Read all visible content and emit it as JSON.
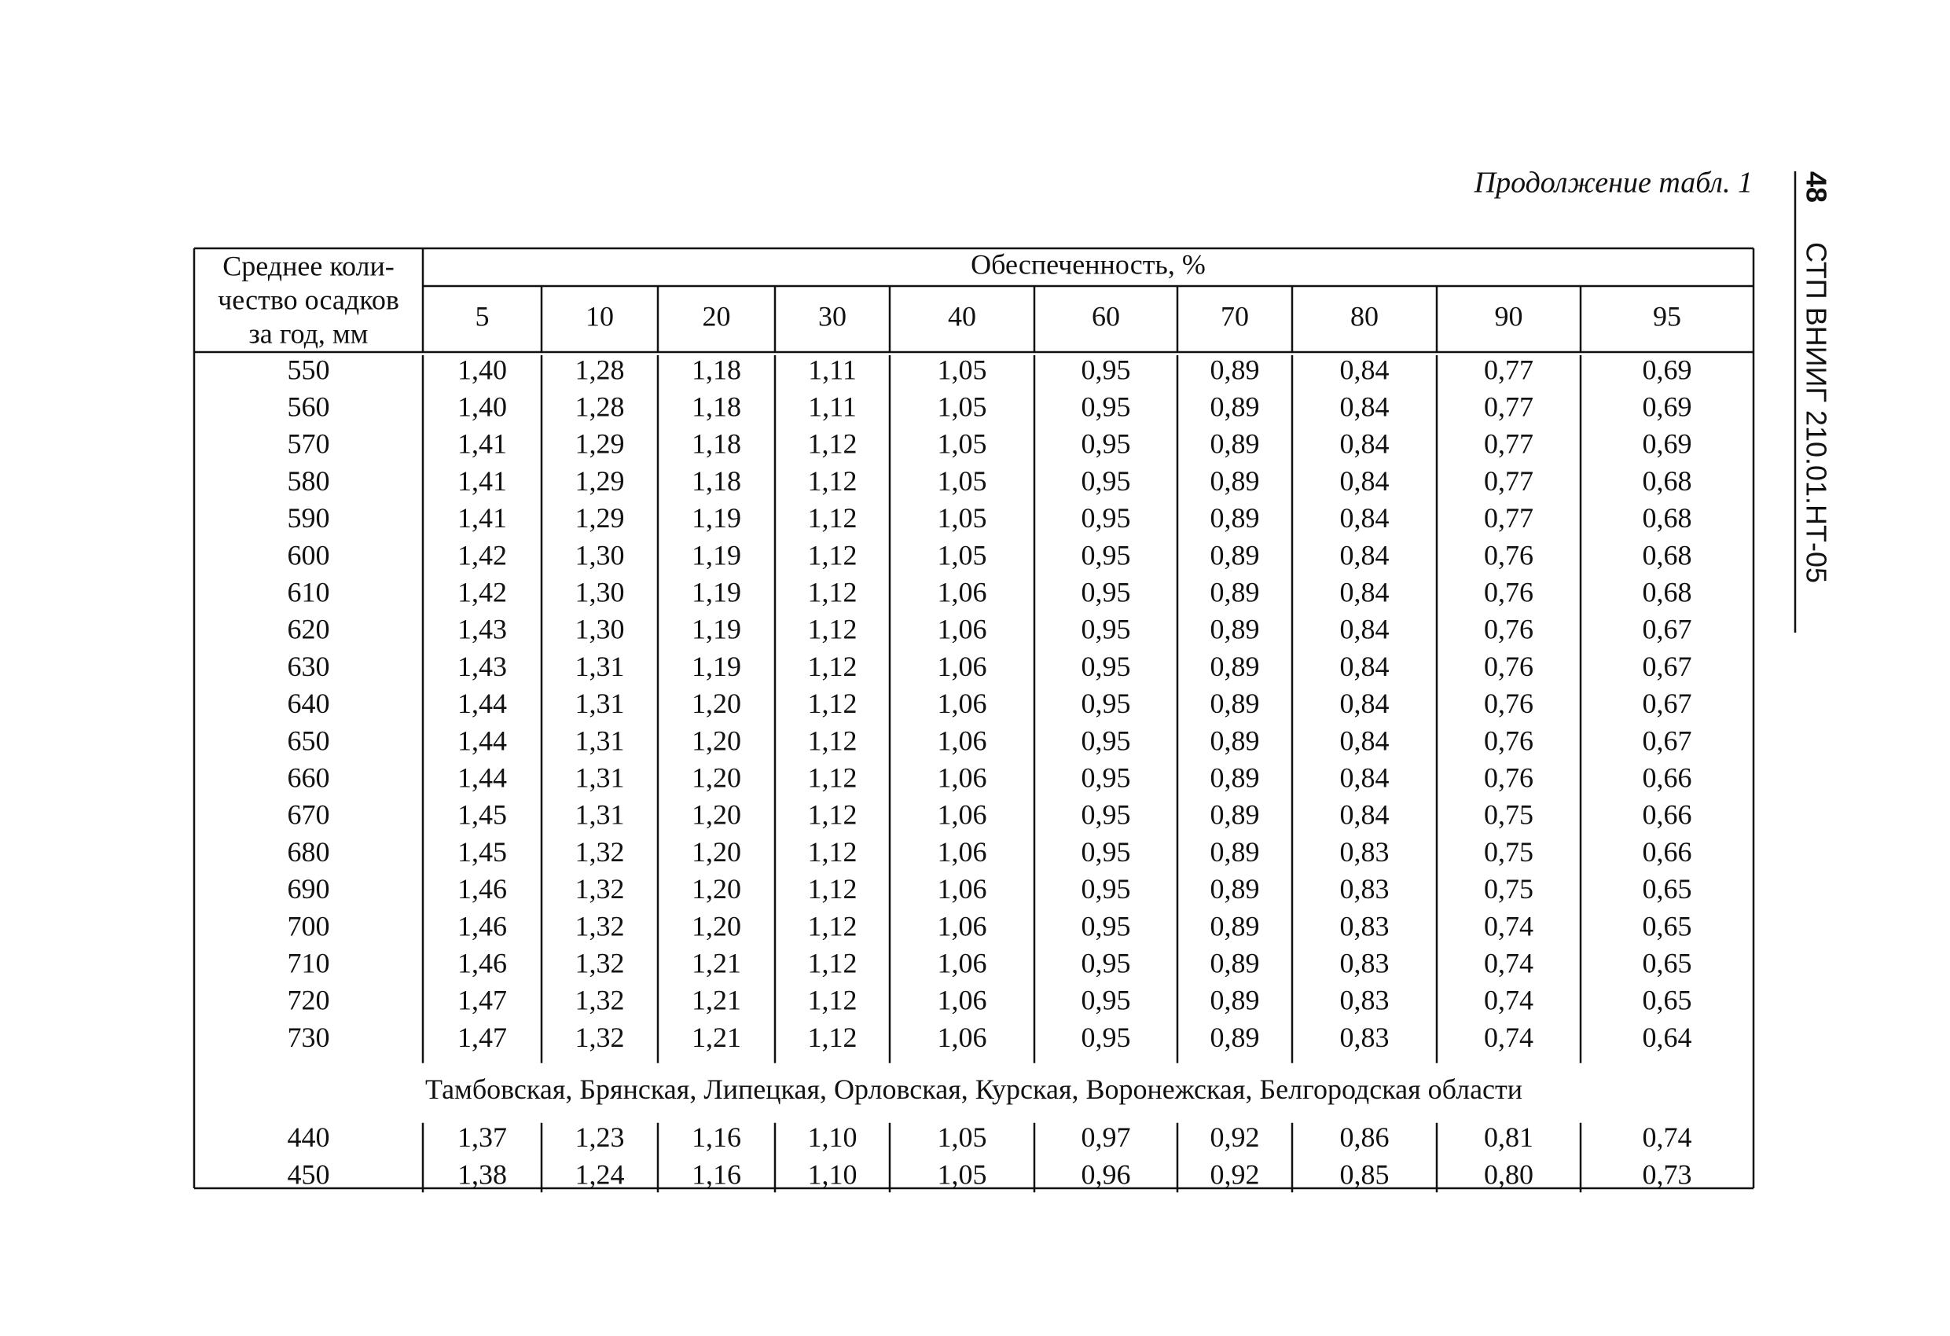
{
  "header": {
    "caption": "Продолжение  табл. 1",
    "page_number": "48",
    "doc_code": "СТП ВНИИГ 210.01.НТ-05"
  },
  "table": {
    "stub_header": [
      "Среднее коли-",
      "чество осадков",
      "за год, мм"
    ],
    "group_header": "Обеспеченность, %",
    "columns": [
      "5",
      "10",
      "20",
      "30",
      "40",
      "60",
      "70",
      "80",
      "90",
      "95"
    ],
    "sections": [
      {
        "rows": [
          [
            "550",
            "1,40",
            "1,28",
            "1,18",
            "1,11",
            "1,05",
            "0,95",
            "0,89",
            "0,84",
            "0,77",
            "0,69"
          ],
          [
            "560",
            "1,40",
            "1,28",
            "1,18",
            "1,11",
            "1,05",
            "0,95",
            "0,89",
            "0,84",
            "0,77",
            "0,69"
          ],
          [
            "570",
            "1,41",
            "1,29",
            "1,18",
            "1,12",
            "1,05",
            "0,95",
            "0,89",
            "0,84",
            "0,77",
            "0,69"
          ],
          [
            "580",
            "1,41",
            "1,29",
            "1,18",
            "1,12",
            "1,05",
            "0,95",
            "0,89",
            "0,84",
            "0,77",
            "0,68"
          ],
          [
            "590",
            "1,41",
            "1,29",
            "1,19",
            "1,12",
            "1,05",
            "0,95",
            "0,89",
            "0,84",
            "0,77",
            "0,68"
          ],
          [
            "600",
            "1,42",
            "1,30",
            "1,19",
            "1,12",
            "1,05",
            "0,95",
            "0,89",
            "0,84",
            "0,76",
            "0,68"
          ],
          [
            "610",
            "1,42",
            "1,30",
            "1,19",
            "1,12",
            "1,06",
            "0,95",
            "0,89",
            "0,84",
            "0,76",
            "0,68"
          ],
          [
            "620",
            "1,43",
            "1,30",
            "1,19",
            "1,12",
            "1,06",
            "0,95",
            "0,89",
            "0,84",
            "0,76",
            "0,67"
          ],
          [
            "630",
            "1,43",
            "1,31",
            "1,19",
            "1,12",
            "1,06",
            "0,95",
            "0,89",
            "0,84",
            "0,76",
            "0,67"
          ],
          [
            "640",
            "1,44",
            "1,31",
            "1,20",
            "1,12",
            "1,06",
            "0,95",
            "0,89",
            "0,84",
            "0,76",
            "0,67"
          ],
          [
            "650",
            "1,44",
            "1,31",
            "1,20",
            "1,12",
            "1,06",
            "0,95",
            "0,89",
            "0,84",
            "0,76",
            "0,67"
          ],
          [
            "660",
            "1,44",
            "1,31",
            "1,20",
            "1,12",
            "1,06",
            "0,95",
            "0,89",
            "0,84",
            "0,76",
            "0,66"
          ],
          [
            "670",
            "1,45",
            "1,31",
            "1,20",
            "1,12",
            "1,06",
            "0,95",
            "0,89",
            "0,84",
            "0,75",
            "0,66"
          ],
          [
            "680",
            "1,45",
            "1,32",
            "1,20",
            "1,12",
            "1,06",
            "0,95",
            "0,89",
            "0,83",
            "0,75",
            "0,66"
          ],
          [
            "690",
            "1,46",
            "1,32",
            "1,20",
            "1,12",
            "1,06",
            "0,95",
            "0,89",
            "0,83",
            "0,75",
            "0,65"
          ],
          [
            "700",
            "1,46",
            "1,32",
            "1,20",
            "1,12",
            "1,06",
            "0,95",
            "0,89",
            "0,83",
            "0,74",
            "0,65"
          ],
          [
            "710",
            "1,46",
            "1,32",
            "1,21",
            "1,12",
            "1,06",
            "0,95",
            "0,89",
            "0,83",
            "0,74",
            "0,65"
          ],
          [
            "720",
            "1,47",
            "1,32",
            "1,21",
            "1,12",
            "1,06",
            "0,95",
            "0,89",
            "0,83",
            "0,74",
            "0,65"
          ],
          [
            "730",
            "1,47",
            "1,32",
            "1,21",
            "1,12",
            "1,06",
            "0,95",
            "0,89",
            "0,83",
            "0,74",
            "0,64"
          ]
        ]
      },
      {
        "region": "Тамбовская, Брянская, Липецкая, Орловская, Курская, Воронежская, Белгородская области",
        "rows": [
          [
            "440",
            "1,37",
            "1,23",
            "1,16",
            "1,10",
            "1,05",
            "0,97",
            "0,92",
            "0,86",
            "0,81",
            "0,74"
          ],
          [
            "450",
            "1,38",
            "1,24",
            "1,16",
            "1,10",
            "1,05",
            "0,96",
            "0,92",
            "0,85",
            "0,80",
            "0,73"
          ]
        ]
      }
    ]
  }
}
